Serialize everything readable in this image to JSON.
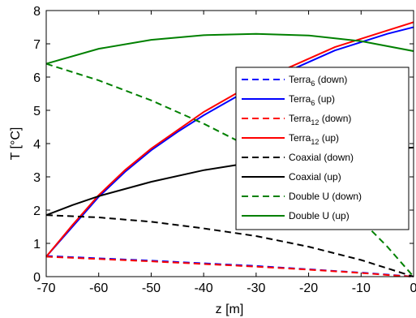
{
  "chart_data": {
    "type": "line",
    "xlabel": "z [m]",
    "ylabel": "T [°C]",
    "xlim": [
      -70,
      0
    ],
    "ylim": [
      0,
      8
    ],
    "xticks": [
      -70,
      -60,
      -50,
      -40,
      -30,
      -20,
      -10,
      0
    ],
    "yticks": [
      0,
      1,
      2,
      3,
      4,
      5,
      6,
      7,
      8
    ],
    "legend_position": "right",
    "grid": false,
    "series": [
      {
        "name": "Terra",
        "sub": "6",
        "suffix": " (down)",
        "color": "#0000ff",
        "dash": "dashed",
        "x": [
          -70,
          -60,
          -50,
          -40,
          -30,
          -20,
          -10,
          -5,
          0
        ],
        "y": [
          0.62,
          0.55,
          0.48,
          0.4,
          0.32,
          0.22,
          0.12,
          0.06,
          0.0
        ]
      },
      {
        "name": "Terra",
        "sub": "6",
        "suffix": " (up)",
        "color": "#0000ff",
        "dash": "solid",
        "x": [
          -70,
          -65,
          -60,
          -55,
          -50,
          -45,
          -40,
          -35,
          -30,
          -25,
          -20,
          -15,
          -10,
          -5,
          0
        ],
        "y": [
          0.6,
          1.5,
          2.4,
          3.15,
          3.8,
          4.35,
          4.85,
          5.3,
          5.75,
          6.1,
          6.45,
          6.8,
          7.05,
          7.3,
          7.5
        ]
      },
      {
        "name": "Terra",
        "sub": "12",
        "suffix": " (down)",
        "color": "#ff0000",
        "dash": "dashed",
        "x": [
          -70,
          -60,
          -50,
          -40,
          -30,
          -20,
          -10,
          -5,
          0
        ],
        "y": [
          0.6,
          0.53,
          0.46,
          0.38,
          0.3,
          0.21,
          0.11,
          0.05,
          0.0
        ]
      },
      {
        "name": "Terra",
        "sub": "12",
        "suffix": " (up)",
        "color": "#ff0000",
        "dash": "solid",
        "x": [
          -70,
          -65,
          -60,
          -55,
          -50,
          -45,
          -40,
          -35,
          -30,
          -25,
          -20,
          -15,
          -10,
          -5,
          0
        ],
        "y": [
          0.6,
          1.55,
          2.45,
          3.2,
          3.85,
          4.4,
          4.95,
          5.4,
          5.85,
          6.2,
          6.55,
          6.9,
          7.15,
          7.4,
          7.65
        ]
      },
      {
        "name": "Coaxial",
        "sub": "",
        "suffix": " (down)",
        "color": "#000000",
        "dash": "dashed",
        "x": [
          -70,
          -60,
          -50,
          -40,
          -30,
          -20,
          -10,
          -5,
          0
        ],
        "y": [
          1.85,
          1.78,
          1.65,
          1.45,
          1.22,
          0.9,
          0.5,
          0.25,
          0.0
        ]
      },
      {
        "name": "Coaxial",
        "sub": "",
        "suffix": " (up)",
        "color": "#000000",
        "dash": "solid",
        "x": [
          -70,
          -65,
          -60,
          -50,
          -40,
          -30,
          -20,
          -10,
          -5,
          0
        ],
        "y": [
          1.85,
          2.15,
          2.42,
          2.85,
          3.2,
          3.45,
          3.65,
          3.8,
          3.85,
          3.88
        ]
      },
      {
        "name": "Double U",
        "sub": "",
        "suffix": " (down)",
        "color": "#008000",
        "dash": "dashed",
        "x": [
          -70,
          -60,
          -50,
          -40,
          -30,
          -20,
          -10,
          -5,
          0
        ],
        "y": [
          6.4,
          5.9,
          5.3,
          4.6,
          3.8,
          2.9,
          1.7,
          0.9,
          0.0
        ]
      },
      {
        "name": "Double U",
        "sub": "",
        "suffix": " (up)",
        "color": "#008000",
        "dash": "solid",
        "x": [
          -70,
          -60,
          -50,
          -40,
          -30,
          -20,
          -10,
          0
        ],
        "y": [
          6.4,
          6.85,
          7.12,
          7.26,
          7.3,
          7.25,
          7.08,
          6.78
        ]
      }
    ]
  }
}
